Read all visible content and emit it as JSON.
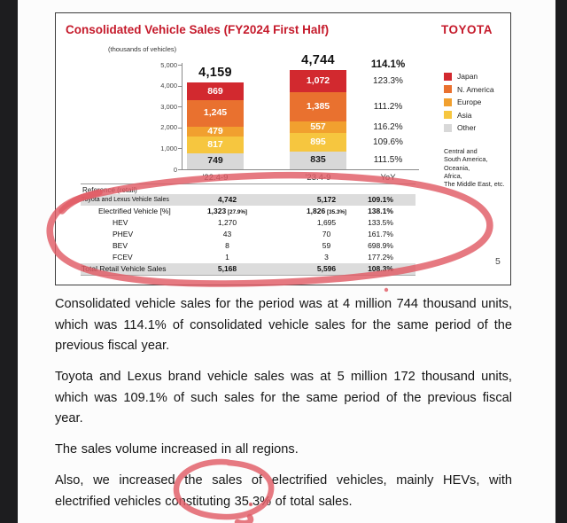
{
  "page": {
    "background": "#fcfcfc",
    "side_bar_color": "#1d1d1f"
  },
  "slide": {
    "title": "Consolidated Vehicle Sales (FY2024 First Half)",
    "brand": "TOYOTA",
    "accent_color": "#c51a2b",
    "units_note": "(thousands of vehicles)",
    "page_number": "5"
  },
  "chart_data": {
    "type": "bar",
    "stacked": true,
    "categories": [
      "'22.4-9",
      "'23.4-9"
    ],
    "totals": [
      4159,
      4744
    ],
    "total_yoy": "114.1%",
    "yoy_header": "YoY",
    "ylim": [
      0,
      5000
    ],
    "yticks": [
      0,
      1000,
      2000,
      3000,
      4000,
      5000
    ],
    "legend_position": "right",
    "series": [
      {
        "name": "Japan",
        "color": "#d2292f",
        "label_color": "#ffffff",
        "values": [
          869,
          1072
        ],
        "yoy": "123.3%"
      },
      {
        "name": "N. America",
        "color": "#e9712f",
        "label_color": "#ffffff",
        "values": [
          1245,
          1385
        ],
        "yoy": "111.2%"
      },
      {
        "name": "Europe",
        "color": "#f1a02f",
        "label_color": "#ffffff",
        "values": [
          479,
          557
        ],
        "yoy": "116.2%"
      },
      {
        "name": "Asia",
        "color": "#f6c63f",
        "label_color": "#ffffff",
        "values": [
          817,
          895
        ],
        "yoy": "109.6%"
      },
      {
        "name": "Other",
        "color": "#d8d8d8",
        "label_color": "#1a1a1a",
        "values": [
          749,
          835
        ],
        "yoy": "111.5%"
      }
    ],
    "legend_note_lines": [
      "Central and",
      "South America,",
      "Oceania,",
      "Africa,",
      "The Middle East, etc."
    ]
  },
  "table": {
    "header": "Reference (retail)",
    "columns": [
      "'22.4-9",
      "'23.4-9",
      "YoY"
    ],
    "rows": [
      {
        "label": "Toyota and Lexus Vehicle Sales",
        "v1": "4,742",
        "n1": "",
        "v2": "5,172",
        "n2": "",
        "yoy": "109.1%",
        "shaded": true,
        "bold": true,
        "indent": 0,
        "small_label": true
      },
      {
        "label": "Electrified Vehicle [%]",
        "v1": "1,323",
        "n1": "[27.9%]",
        "v2": "1,826",
        "n2": "[35.3%]",
        "yoy": "138.1%",
        "shaded": false,
        "bold": true,
        "indent": 1,
        "small_label": false
      },
      {
        "label": "HEV",
        "v1": "1,270",
        "n1": "",
        "v2": "1,695",
        "n2": "",
        "yoy": "133.5%",
        "shaded": false,
        "bold": false,
        "indent": 2,
        "small_label": false
      },
      {
        "label": "PHEV",
        "v1": "43",
        "n1": "",
        "v2": "70",
        "n2": "",
        "yoy": "161.7%",
        "shaded": false,
        "bold": false,
        "indent": 2,
        "small_label": false
      },
      {
        "label": "BEV",
        "v1": "8",
        "n1": "",
        "v2": "59",
        "n2": "",
        "yoy": "698.9%",
        "shaded": false,
        "bold": false,
        "indent": 2,
        "small_label": false
      },
      {
        "label": "FCEV",
        "v1": "1",
        "n1": "",
        "v2": "3",
        "n2": "",
        "yoy": "177.2%",
        "shaded": false,
        "bold": false,
        "indent": 2,
        "small_label": false
      },
      {
        "label": "Total Retail Vehicle Sales",
        "v1": "5,168",
        "n1": "",
        "v2": "5,596",
        "n2": "",
        "yoy": "108.3%",
        "shaded": true,
        "bold": true,
        "indent": 0,
        "small_label": false
      }
    ]
  },
  "body": {
    "paragraphs": [
      "Consolidated vehicle sales for the period was at 4 million 744 thousand units, which was 114.1% of consolidated vehicle sales for the same period of the previous fiscal year.",
      "Toyota and Lexus brand vehicle sales was at 5 million 172 thousand units, which was 109.1% of such sales for the same period of the previous fiscal year.",
      "The sales volume increased in all regions.",
      "Also, we increased the sales of electrified vehicles, mainly HEVs, with electrified vehicles constituting 35.3% of total sales."
    ]
  },
  "annotations": {
    "marker_color": "#e05c65",
    "circled_value": "35.3%"
  }
}
